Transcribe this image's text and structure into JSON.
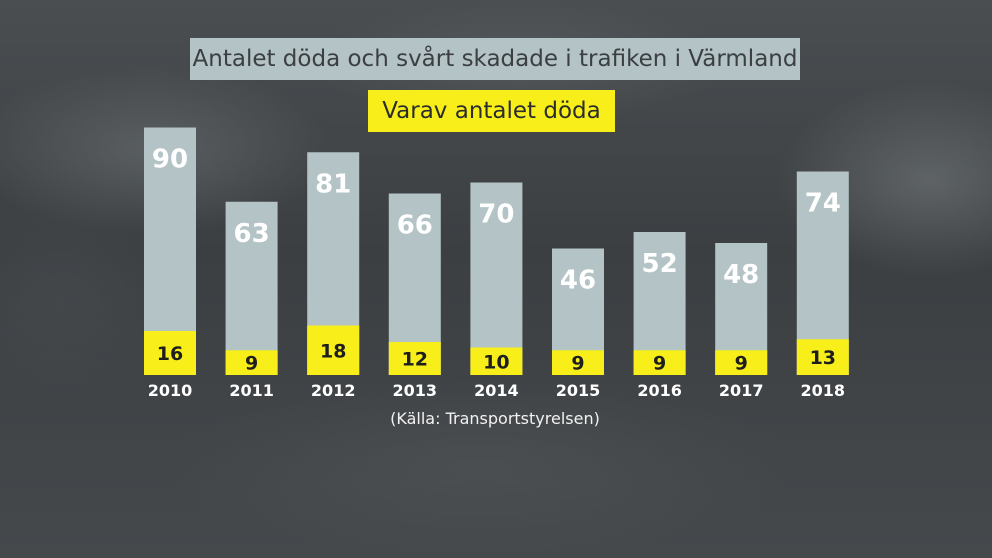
{
  "chart_data": {
    "type": "bar",
    "title": "Antalet döda och svårt skadade i trafiken i Värmland",
    "subtitle": "Varav antalet döda",
    "categories": [
      "2010",
      "2011",
      "2012",
      "2013",
      "2014",
      "2015",
      "2016",
      "2017",
      "2018"
    ],
    "series": [
      {
        "name": "Antalet döda och svårt skadade i trafiken i Värmland",
        "values": [
          90,
          63,
          81,
          66,
          70,
          46,
          52,
          48,
          74
        ]
      },
      {
        "name": "Varav antalet döda",
        "values": [
          16,
          9,
          18,
          12,
          10,
          9,
          9,
          9,
          13
        ]
      }
    ],
    "source": "(Källa: Transportstyrelsen)",
    "colors": {
      "total": "#b3c3c6",
      "deaths": "#f8ef1a",
      "label_on_total": "#ffffff",
      "label_on_deaths": "#1e1e1e",
      "year_label": "#ffffff"
    },
    "ylim": [
      0,
      90
    ],
    "grid": false,
    "legend": "top-center"
  }
}
